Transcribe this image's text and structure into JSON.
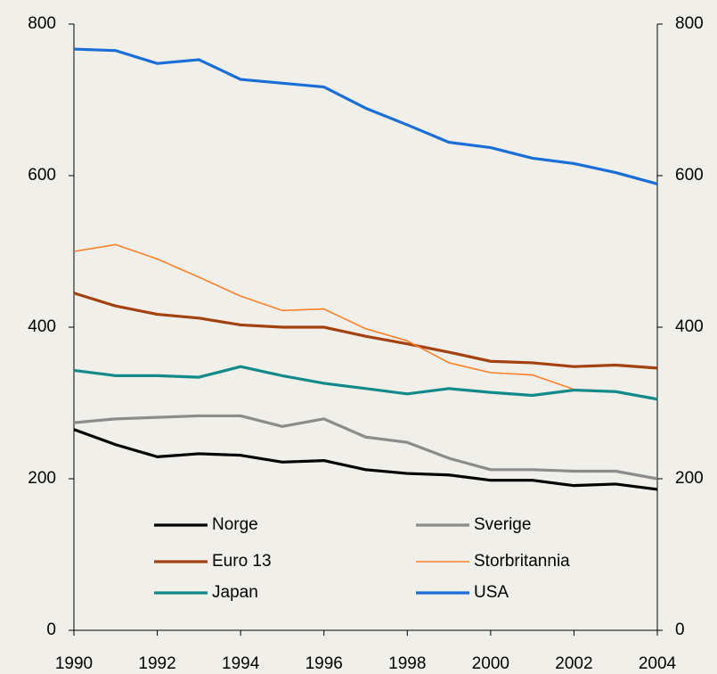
{
  "chart_data": {
    "type": "line",
    "x": [
      1990,
      1991,
      1992,
      1993,
      1994,
      1995,
      1996,
      1997,
      1998,
      1999,
      2000,
      2001,
      2002,
      2003,
      2004
    ],
    "series": [
      {
        "name": "Norge",
        "color": "#000000",
        "values": [
          265,
          245,
          229,
          233,
          231,
          222,
          224,
          212,
          207,
          205,
          198,
          198,
          191,
          193,
          186
        ]
      },
      {
        "name": "Sverige",
        "color": "#8c8c8c",
        "values": [
          274,
          279,
          281,
          283,
          283,
          269,
          279,
          255,
          248,
          227,
          212,
          212,
          210,
          210,
          200
        ]
      },
      {
        "name": "Euro 13",
        "color": "#a3410f",
        "values": [
          445,
          428,
          417,
          412,
          403,
          400,
          400,
          388,
          378,
          367,
          355,
          353,
          348,
          350,
          346
        ]
      },
      {
        "name": "Storbritannia",
        "color": "#ff7f27",
        "values": [
          500,
          509,
          490,
          466,
          441,
          422,
          424,
          398,
          382,
          353,
          340,
          337,
          318,
          315,
          305
        ]
      },
      {
        "name": "Japan",
        "color": "#138a8a",
        "values": [
          343,
          336,
          336,
          334,
          348,
          336,
          326,
          319,
          312,
          319,
          314,
          310,
          317,
          315,
          305
        ]
      },
      {
        "name": "USA",
        "color": "#1a6ed8",
        "values": [
          767,
          765,
          748,
          753,
          727,
          722,
          717,
          689,
          667,
          644,
          637,
          623,
          616,
          604,
          589
        ]
      }
    ],
    "xlim": [
      1990,
      2004
    ],
    "xticks": [
      1990,
      1992,
      1994,
      1996,
      1998,
      2000,
      2002,
      2004
    ],
    "ylim": [
      0,
      800
    ],
    "yticks": [
      0,
      200,
      400,
      600,
      800
    ],
    "y2lim": [
      0,
      800
    ],
    "y2ticks": [
      0,
      200,
      400,
      600,
      800
    ]
  }
}
